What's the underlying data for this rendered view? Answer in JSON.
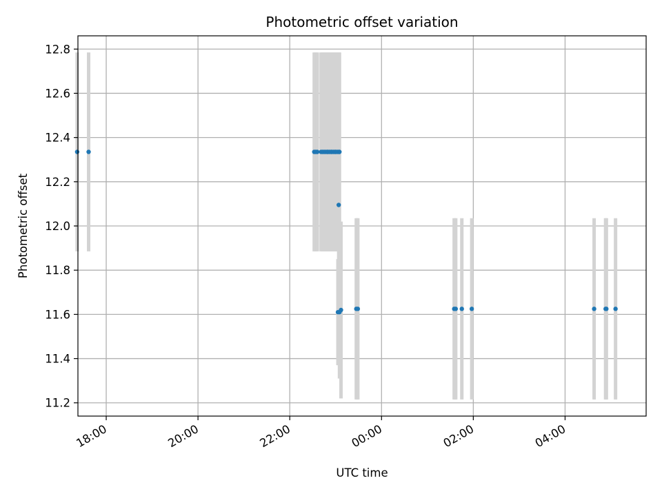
{
  "chart_data": {
    "type": "scatter",
    "title": "Photometric offset variation",
    "xlabel": "UTC time",
    "ylabel": "Photometric offset",
    "x_axis_kind": "time",
    "xlim": [
      "17:23",
      "05:46"
    ],
    "ylim": [
      11.14,
      12.86
    ],
    "xticks": [
      "18:00",
      "20:00",
      "22:00",
      "00:00",
      "02:00",
      "04:00"
    ],
    "yticks": [
      "11.2",
      "11.4",
      "11.6",
      "11.8",
      "12.0",
      "12.2",
      "12.4",
      "12.6",
      "12.8"
    ],
    "grid": true,
    "legend": "none",
    "colors": {
      "points": "#1f77b4",
      "error_bars": "#d3d3d3",
      "grid": "#b0b0b0"
    },
    "series": [
      {
        "points": [
          {
            "x": "17:22",
            "y": 12.335,
            "err": 0.45
          },
          {
            "x": "17:37",
            "y": 12.335,
            "err": 0.45
          },
          {
            "x": "22:32",
            "y": 12.335,
            "err": 0.45
          },
          {
            "x": "22:34",
            "y": 12.335,
            "err": 0.45
          },
          {
            "x": "22:36",
            "y": 12.335,
            "err": 0.45
          },
          {
            "x": "22:41",
            "y": 12.335,
            "err": 0.45
          },
          {
            "x": "22:43",
            "y": 12.335,
            "err": 0.45
          },
          {
            "x": "22:45",
            "y": 12.335,
            "err": 0.45
          },
          {
            "x": "22:47",
            "y": 12.335,
            "err": 0.45
          },
          {
            "x": "22:49",
            "y": 12.335,
            "err": 0.45
          },
          {
            "x": "22:50",
            "y": 12.335,
            "err": 0.45
          },
          {
            "x": "22:52",
            "y": 12.335,
            "err": 0.45
          },
          {
            "x": "22:54",
            "y": 12.335,
            "err": 0.45
          },
          {
            "x": "22:55",
            "y": 12.335,
            "err": 0.45
          },
          {
            "x": "22:57",
            "y": 12.335,
            "err": 0.45
          },
          {
            "x": "22:59",
            "y": 12.335,
            "err": 0.45
          },
          {
            "x": "23:00",
            "y": 12.335,
            "err": 0.45
          },
          {
            "x": "23:02",
            "y": 12.335,
            "err": 0.45
          },
          {
            "x": "23:04",
            "y": 12.335,
            "err": 0.45
          },
          {
            "x": "23:05",
            "y": 12.335,
            "err": 0.45
          },
          {
            "x": "23:04",
            "y": 12.095,
            "err": 0.52
          },
          {
            "x": "23:03",
            "y": 11.61,
            "err": 0.24
          },
          {
            "x": "23:05",
            "y": 11.61,
            "err": 0.3
          },
          {
            "x": "23:07",
            "y": 11.62,
            "err": 0.4
          },
          {
            "x": "23:27",
            "y": 11.625,
            "err": 0.41
          },
          {
            "x": "23:29",
            "y": 11.625,
            "err": 0.41
          },
          {
            "x": "01:35",
            "y": 11.625,
            "err": 0.41
          },
          {
            "x": "01:37",
            "y": 11.625,
            "err": 0.41
          },
          {
            "x": "01:45",
            "y": 11.625,
            "err": 0.41
          },
          {
            "x": "01:58",
            "y": 11.625,
            "err": 0.41
          },
          {
            "x": "04:38",
            "y": 11.625,
            "err": 0.41
          },
          {
            "x": "04:53",
            "y": 11.625,
            "err": 0.41
          },
          {
            "x": "04:54",
            "y": 11.625,
            "err": 0.41
          },
          {
            "x": "05:06",
            "y": 11.625,
            "err": 0.41
          }
        ]
      }
    ]
  }
}
